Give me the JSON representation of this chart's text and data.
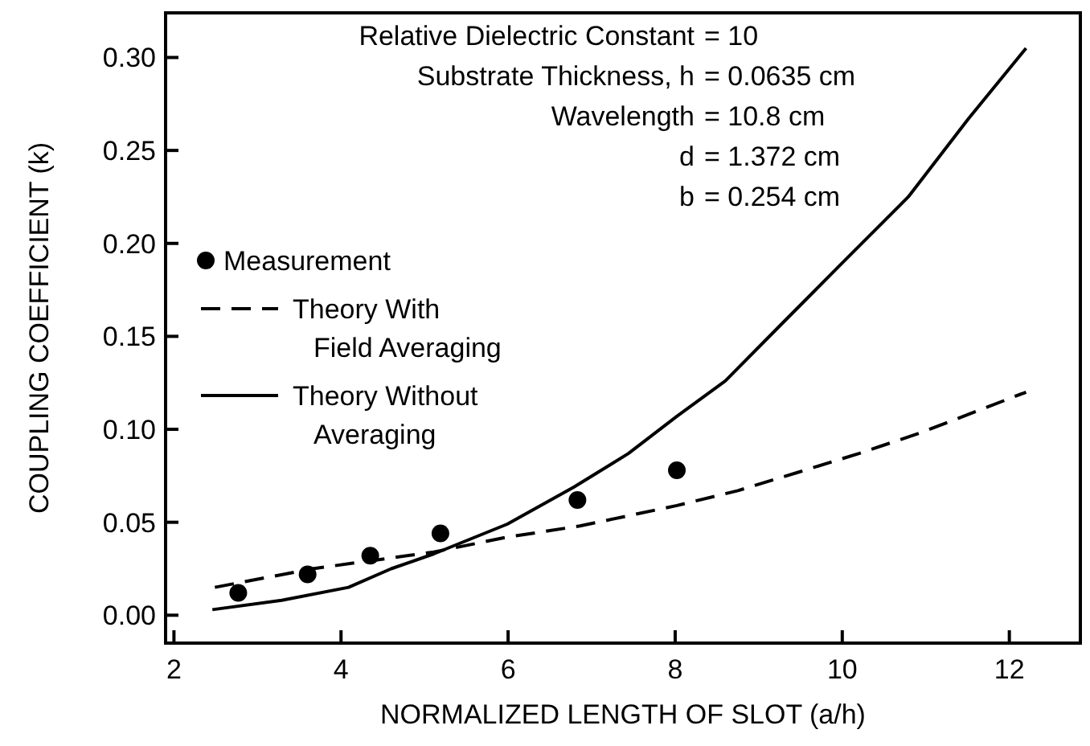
{
  "chart_data": {
    "type": "line",
    "xlabel": "NORMALIZED LENGTH OF SLOT (a/h)",
    "ylabel": "COUPLING COEFFICIENT (k)",
    "xlim": [
      1.9,
      12.85
    ],
    "xticks": [
      2,
      4,
      6,
      8,
      10,
      12
    ],
    "ylim": [
      -0.015,
      0.324
    ],
    "yticks": [
      {
        "value": 0,
        "label": "0.00"
      },
      {
        "value": 0.05,
        "label": "0.05"
      },
      {
        "value": 0.1,
        "label": "0.10"
      },
      {
        "value": 0.15,
        "label": "0.15"
      },
      {
        "value": 0.2,
        "label": "0.20"
      },
      {
        "value": 0.25,
        "label": "0.25"
      },
      {
        "value": 0.3,
        "label": "0.30"
      }
    ],
    "grid": false,
    "legend": "left",
    "annotations": [
      "Relative Dielectric Constant = 10",
      "Substrate Thickness, h = 0.0635 cm",
      "Wavelength = 10.8 cm",
      "d = 1.372 cm",
      "b = 0.254 cm"
    ],
    "series": [
      {
        "name": "Measurement",
        "type": "scatter",
        "marker": "circle",
        "color": "#000000",
        "x": [
          2.77,
          3.6,
          4.35,
          5.19,
          6.83,
          8.02
        ],
        "values": [
          0.012,
          0.022,
          0.032,
          0.044,
          0.062,
          0.078
        ]
      },
      {
        "name": "Theory With Field Averaging",
        "line_style": "dashed",
        "color": "#000000",
        "x": [
          2.49,
          3.66,
          5.11,
          5.99,
          6.86,
          8.02,
          8.75,
          9.48,
          10.2,
          10.93,
          12.2
        ],
        "values": [
          0.015,
          0.025,
          0.034,
          0.042,
          0.048,
          0.059,
          0.067,
          0.077,
          0.087,
          0.098,
          0.12
        ]
      },
      {
        "name": "Theory Without Averaging",
        "line_style": "solid",
        "color": "#000000",
        "x": [
          2.46,
          3.29,
          4.09,
          4.6,
          5.11,
          5.99,
          6.79,
          7.44,
          8.02,
          8.6,
          9.26,
          9.99,
          10.79,
          11.51,
          12.2
        ],
        "values": [
          0.003,
          0.008,
          0.015,
          0.025,
          0.033,
          0.049,
          0.069,
          0.087,
          0.107,
          0.126,
          0.156,
          0.189,
          0.225,
          0.267,
          0.305
        ]
      }
    ]
  }
}
